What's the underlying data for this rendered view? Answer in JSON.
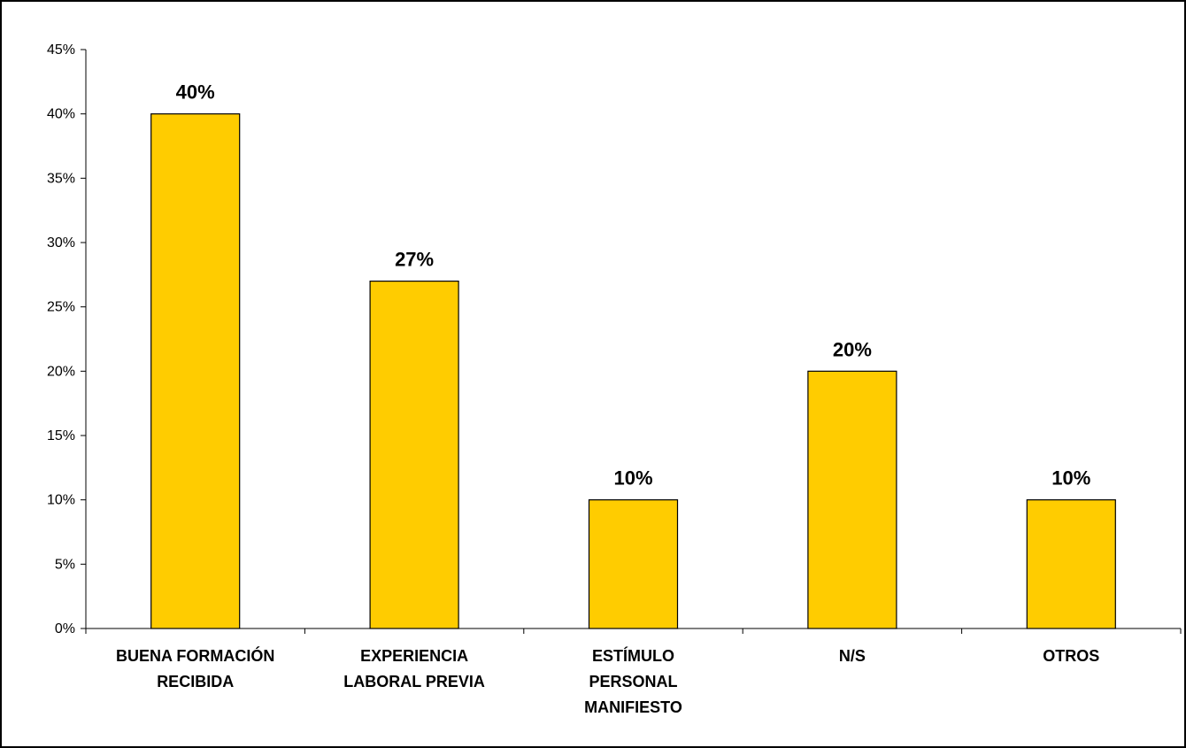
{
  "chart_data": {
    "type": "bar",
    "categories": [
      [
        "BUENA FORMACIÓN",
        "RECIBIDA"
      ],
      [
        "EXPERIENCIA",
        "LABORAL PREVIA"
      ],
      [
        "ESTÍMULO",
        "PERSONAL",
        "MANIFIESTO"
      ],
      [
        "N/S"
      ],
      [
        "OTROS"
      ]
    ],
    "values": [
      40,
      27,
      10,
      20,
      10
    ],
    "data_labels": [
      "40%",
      "27%",
      "10%",
      "20%",
      "10%"
    ],
    "y_ticks": [
      0,
      5,
      10,
      15,
      20,
      25,
      30,
      35,
      40,
      45
    ],
    "y_tick_labels": [
      "0%",
      "5%",
      "10%",
      "15%",
      "20%",
      "25%",
      "30%",
      "35%",
      "40%",
      "45%"
    ],
    "ylim": [
      0,
      45
    ],
    "grid": false,
    "legend": "none",
    "title": "",
    "xlabel": "",
    "ylabel": "",
    "bar_color": "#FFCC00",
    "bar_outline_color": "#000000"
  }
}
